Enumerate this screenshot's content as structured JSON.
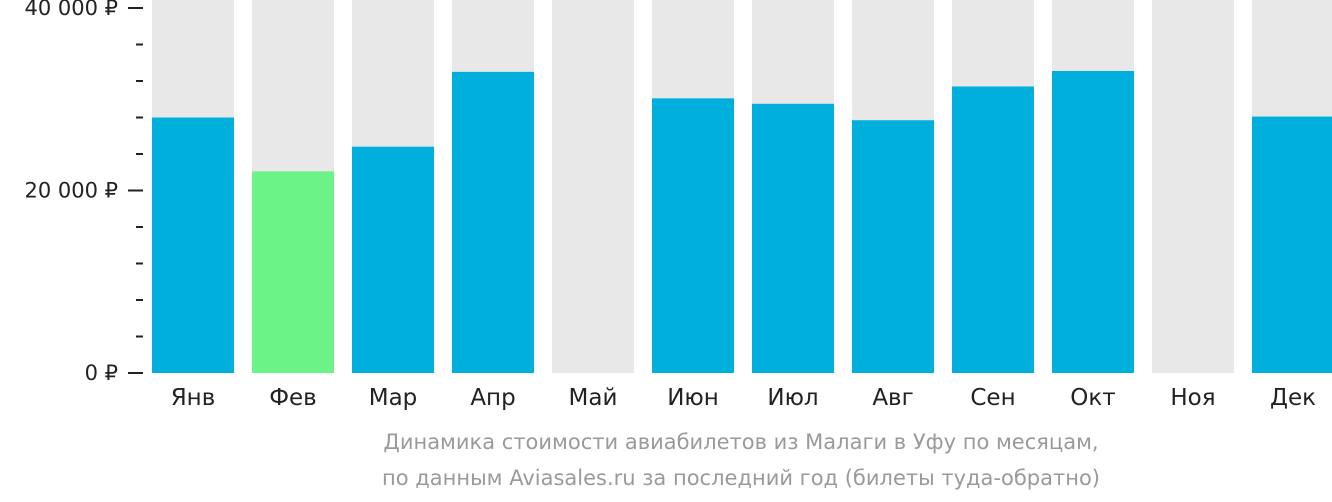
{
  "chart_data": {
    "type": "bar",
    "categories": [
      "Янв",
      "Фев",
      "Мар",
      "Апр",
      "Май",
      "Июн",
      "Июл",
      "Авг",
      "Сен",
      "Окт",
      "Ноя",
      "Дек"
    ],
    "values": [
      28000,
      22100,
      24800,
      33000,
      null,
      30100,
      29500,
      27700,
      31400,
      33100,
      null,
      28100
    ],
    "highlight_index": 1,
    "ylim": [
      0,
      40000
    ],
    "ytick_labels": [
      {
        "value": 40000,
        "label": "40 000 ₽"
      },
      {
        "value": 20000,
        "label": "20 000 ₽"
      },
      {
        "value": 0,
        "label": "0 ₽"
      }
    ],
    "minor_tick_step": 4000,
    "grid": false,
    "colors": {
      "bar": "#00afdb",
      "highlight": "#6cf388",
      "track": "#e8e8e8",
      "axis_text": "#222222",
      "caption": "#9a9a9a"
    }
  },
  "caption": {
    "line1": "Динамика стоимости авиабилетов из Малаги в Уфу по месяцам,",
    "line2": "по данным Aviasales.ru за последний год (билеты туда-обратно)"
  }
}
